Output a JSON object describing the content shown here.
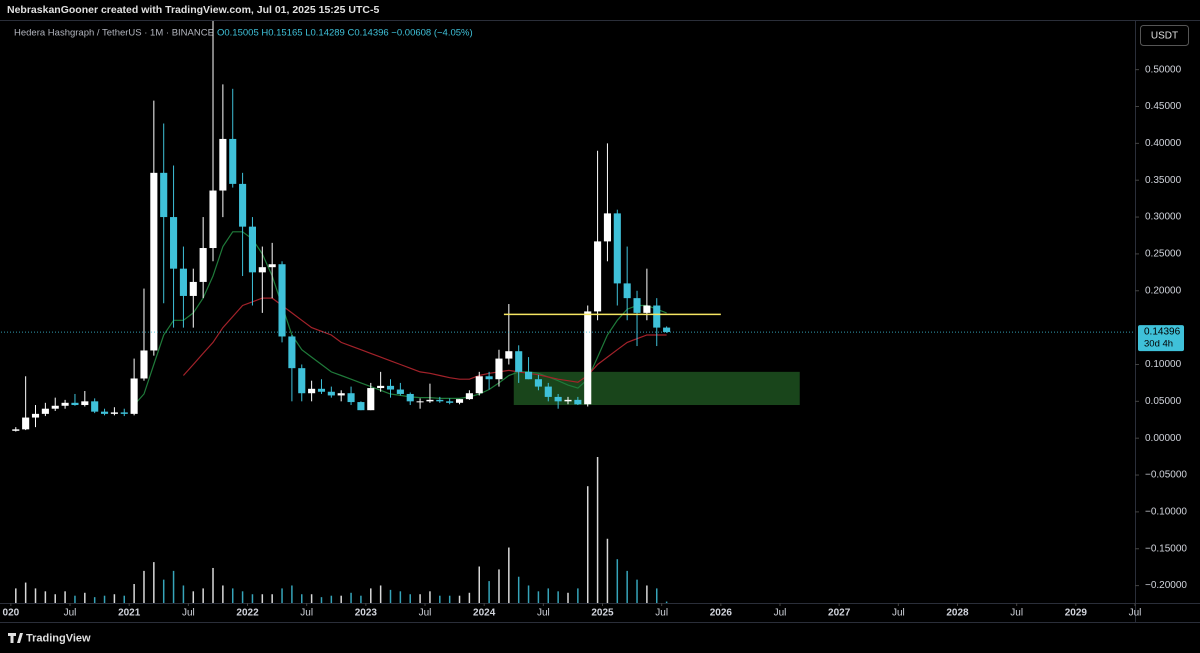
{
  "chart_data": {
    "type": "candlestick",
    "header": "NebraskanGooner created with TradingView.com, Jul 01, 2025 15:25 UTC-5",
    "title": "Hedera Hashgraph / TetherUS · 1M · BINANCE",
    "legend_values": "O0.15005 H0.15165 L0.14289 C0.14396 −0.00608 (−4.05%)",
    "currency": "USDT",
    "branding": "TradingView",
    "up_color": "#ffffff",
    "down_color": "#3fc1d9",
    "grid": false,
    "x": [
      "2020-01",
      "2020-02",
      "2020-03",
      "2020-04",
      "2020-05",
      "2020-06",
      "2020-07",
      "2020-08",
      "2020-09",
      "2020-10",
      "2020-11",
      "2020-12",
      "2021-01",
      "2021-02",
      "2021-03",
      "2021-04",
      "2021-05",
      "2021-06",
      "2021-07",
      "2021-08",
      "2021-09",
      "2021-10",
      "2021-11",
      "2021-12",
      "2022-01",
      "2022-02",
      "2022-03",
      "2022-04",
      "2022-05",
      "2022-06",
      "2022-07",
      "2022-08",
      "2022-09",
      "2022-10",
      "2022-11",
      "2022-12",
      "2023-01",
      "2023-02",
      "2023-03",
      "2023-04",
      "2023-05",
      "2023-06",
      "2023-07",
      "2023-08",
      "2023-09",
      "2023-10",
      "2023-11",
      "2023-12",
      "2024-01",
      "2024-02",
      "2024-03",
      "2024-04",
      "2024-05",
      "2024-06",
      "2024-07",
      "2024-08",
      "2024-09",
      "2024-10",
      "2024-11",
      "2024-12",
      "2025-01",
      "2025-02",
      "2025-03",
      "2025-04",
      "2025-05",
      "2025-06",
      "2025-07"
    ],
    "open": [
      0.01,
      0.012,
      0.028,
      0.033,
      0.04,
      0.044,
      0.048,
      0.045,
      0.05,
      0.036,
      0.033,
      0.035,
      0.033,
      0.081,
      0.119,
      0.36,
      0.3,
      0.23,
      0.193,
      0.212,
      0.258,
      0.336,
      0.406,
      0.345,
      0.287,
      0.225,
      0.232,
      0.236,
      0.138,
      0.095,
      0.061,
      0.067,
      0.063,
      0.058,
      0.061,
      0.049,
      0.038,
      0.068,
      0.071,
      0.066,
      0.06,
      0.05,
      0.05,
      0.052,
      0.05,
      0.048,
      0.053,
      0.061,
      0.084,
      0.08,
      0.108,
      0.118,
      0.09,
      0.08,
      0.07,
      0.056,
      0.05,
      0.052,
      0.046,
      0.172,
      0.267,
      0.305,
      0.21,
      0.19,
      0.17,
      0.18,
      0.15005
    ],
    "high": [
      0.015,
      0.084,
      0.045,
      0.048,
      0.055,
      0.052,
      0.06,
      0.064,
      0.054,
      0.04,
      0.042,
      0.04,
      0.108,
      0.203,
      0.458,
      0.427,
      0.37,
      0.26,
      0.23,
      0.3,
      0.57,
      0.48,
      0.474,
      0.36,
      0.3,
      0.26,
      0.265,
      0.24,
      0.14,
      0.1,
      0.078,
      0.08,
      0.07,
      0.065,
      0.07,
      0.05,
      0.075,
      0.09,
      0.08,
      0.075,
      0.062,
      0.054,
      0.074,
      0.056,
      0.054,
      0.053,
      0.065,
      0.09,
      0.09,
      0.12,
      0.182,
      0.126,
      0.11,
      0.086,
      0.075,
      0.06,
      0.056,
      0.056,
      0.18,
      0.39,
      0.4,
      0.31,
      0.26,
      0.2,
      0.23,
      0.19,
      0.15165
    ],
    "low": [
      0.009,
      0.011,
      0.015,
      0.03,
      0.037,
      0.04,
      0.044,
      0.043,
      0.034,
      0.031,
      0.031,
      0.03,
      0.031,
      0.078,
      0.112,
      0.183,
      0.15,
      0.15,
      0.15,
      0.19,
      0.24,
      0.3,
      0.34,
      0.22,
      0.18,
      0.17,
      0.19,
      0.13,
      0.05,
      0.05,
      0.05,
      0.06,
      0.055,
      0.05,
      0.045,
      0.038,
      0.038,
      0.063,
      0.055,
      0.058,
      0.045,
      0.04,
      0.048,
      0.048,
      0.046,
      0.046,
      0.052,
      0.058,
      0.066,
      0.07,
      0.1,
      0.075,
      0.08,
      0.065,
      0.05,
      0.04,
      0.046,
      0.045,
      0.043,
      0.16,
      0.24,
      0.18,
      0.16,
      0.125,
      0.16,
      0.125,
      0.14289
    ],
    "close": [
      0.012,
      0.028,
      0.033,
      0.04,
      0.044,
      0.048,
      0.045,
      0.05,
      0.036,
      0.033,
      0.035,
      0.033,
      0.081,
      0.119,
      0.36,
      0.3,
      0.23,
      0.193,
      0.212,
      0.258,
      0.336,
      0.406,
      0.345,
      0.287,
      0.225,
      0.232,
      0.236,
      0.138,
      0.095,
      0.061,
      0.067,
      0.063,
      0.058,
      0.061,
      0.049,
      0.038,
      0.068,
      0.071,
      0.066,
      0.06,
      0.05,
      0.05,
      0.052,
      0.05,
      0.048,
      0.053,
      0.061,
      0.084,
      0.08,
      0.108,
      0.118,
      0.09,
      0.08,
      0.07,
      0.056,
      0.05,
      0.052,
      0.046,
      0.172,
      0.267,
      0.305,
      0.21,
      0.19,
      0.17,
      0.18,
      0.15005,
      0.14396
    ],
    "volume": [
      10,
      14,
      10,
      8,
      6,
      8,
      5,
      7,
      4,
      5,
      6,
      5,
      13,
      22,
      28,
      16,
      22,
      12,
      8,
      10,
      24,
      12,
      10,
      8,
      6,
      6,
      6,
      10,
      12,
      6,
      6,
      4,
      5,
      5,
      7,
      5,
      10,
      12,
      9,
      8,
      6,
      6,
      8,
      5,
      5,
      5,
      7,
      25,
      15,
      23,
      38,
      18,
      12,
      8,
      10,
      8,
      7,
      10,
      80,
      100,
      44,
      30,
      22,
      16,
      12,
      10,
      1
    ],
    "moving_averages": [
      {
        "color": "#1f7a3a",
        "values": [
          null,
          null,
          null,
          null,
          null,
          null,
          null,
          null,
          null,
          null,
          null,
          null,
          0.045,
          0.06,
          0.1,
          0.14,
          0.16,
          0.16,
          0.17,
          0.19,
          0.22,
          0.26,
          0.28,
          0.28,
          0.27,
          0.25,
          0.22,
          0.18,
          0.14,
          0.12,
          0.11,
          0.1,
          0.09,
          0.085,
          0.08,
          0.075,
          0.07,
          0.065,
          0.06,
          0.058,
          0.056,
          0.055,
          0.055,
          0.054,
          0.054,
          0.054,
          0.056,
          0.06,
          0.066,
          0.075,
          0.085,
          0.09,
          0.09,
          0.088,
          0.083,
          0.078,
          0.072,
          0.068,
          0.08,
          0.11,
          0.14,
          0.16,
          0.175,
          0.18,
          0.18,
          0.175,
          0.17
        ]
      },
      {
        "color": "#a3222a",
        "values": [
          null,
          null,
          null,
          null,
          null,
          null,
          null,
          null,
          null,
          null,
          null,
          null,
          null,
          null,
          null,
          null,
          null,
          0.085,
          0.1,
          0.115,
          0.13,
          0.15,
          0.165,
          0.18,
          0.185,
          0.19,
          0.19,
          0.18,
          0.17,
          0.16,
          0.15,
          0.145,
          0.14,
          0.13,
          0.125,
          0.12,
          0.115,
          0.11,
          0.105,
          0.1,
          0.095,
          0.09,
          0.088,
          0.085,
          0.082,
          0.08,
          0.08,
          0.085,
          0.088,
          0.09,
          0.092,
          0.09,
          0.088,
          0.086,
          0.083,
          0.08,
          0.078,
          0.076,
          0.085,
          0.1,
          0.11,
          0.12,
          0.13,
          0.135,
          0.14,
          0.14,
          0.14
        ]
      }
    ],
    "zones": [
      {
        "x": [
          "2024-04",
          "2026-09"
        ],
        "y": [
          0.045,
          0.09
        ],
        "color": "#2e7d32"
      }
    ],
    "levels": [
      {
        "x": [
          "2024-03",
          "2026-01"
        ],
        "value": 0.168,
        "color": "#f5e663"
      }
    ],
    "last_price": {
      "value": 0.14396,
      "countdown": "30d 4h"
    },
    "ylim": [
      -0.2236,
      0.566
    ],
    "yticks": [
      {
        "value": 0.5,
        "label": "0.50000"
      },
      {
        "value": 0.45,
        "label": "0.45000"
      },
      {
        "value": 0.4,
        "label": "0.40000"
      },
      {
        "value": 0.35,
        "label": "0.35000"
      },
      {
        "value": 0.3,
        "label": "0.30000"
      },
      {
        "value": 0.25,
        "label": "0.25000"
      },
      {
        "value": 0.2,
        "label": "0.20000"
      },
      {
        "value": 0.1,
        "label": "0.10000"
      },
      {
        "value": 0.05,
        "label": "0.05000"
      },
      {
        "value": 0,
        "label": "0.00000"
      },
      {
        "value": -0.05,
        "label": "−0.05000"
      },
      {
        "value": -0.1,
        "label": "−0.10000"
      },
      {
        "value": -0.15,
        "label": "−0.15000"
      },
      {
        "value": -0.2,
        "label": "−0.20000"
      }
    ],
    "xlim": [
      "2019-12",
      "2029-07"
    ],
    "xticks": [
      {
        "value": "2020-01",
        "label": "020"
      },
      {
        "value": "2020-07",
        "label": "Jul"
      },
      {
        "value": "2021-01",
        "label": "2021"
      },
      {
        "value": "2021-07",
        "label": "Jul"
      },
      {
        "value": "2022-01",
        "label": "2022"
      },
      {
        "value": "2022-07",
        "label": "Jul"
      },
      {
        "value": "2023-01",
        "label": "2023"
      },
      {
        "value": "2023-07",
        "label": "Jul"
      },
      {
        "value": "2024-01",
        "label": "2024"
      },
      {
        "value": "2024-07",
        "label": "Jul"
      },
      {
        "value": "2025-01",
        "label": "2025"
      },
      {
        "value": "2025-07",
        "label": "Jul"
      },
      {
        "value": "2026-01",
        "label": "2026"
      },
      {
        "value": "2026-07",
        "label": "Jul"
      },
      {
        "value": "2027-01",
        "label": "2027"
      },
      {
        "value": "2027-07",
        "label": "Jul"
      },
      {
        "value": "2028-01",
        "label": "2028"
      },
      {
        "value": "2028-07",
        "label": "Jul"
      },
      {
        "value": "2029-01",
        "label": "2029"
      },
      {
        "value": "2029-07",
        "label": "Jul"
      }
    ]
  }
}
